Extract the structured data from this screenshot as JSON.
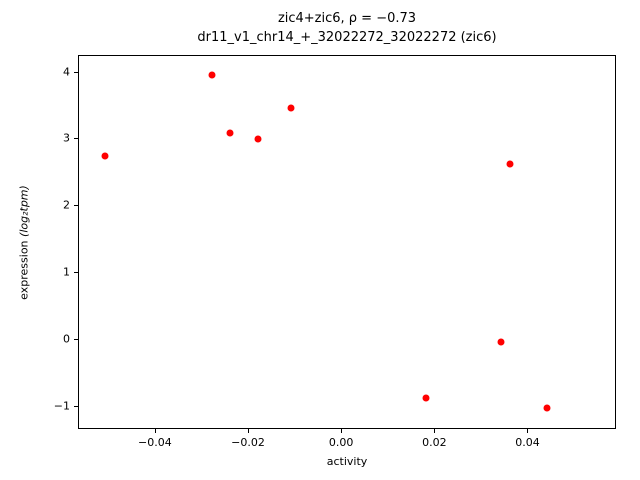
{
  "chart_data": {
    "type": "scatter",
    "title": "zic4+zic6, ρ = −0.73",
    "subtitle": "dr11_v1_chr14_+_32022272_32022272 (zic6)",
    "xlabel": "activity",
    "ylabel_prefix": "expression ",
    "ylabel_math": "(log₂tpm)",
    "marker_color": "#ff0000",
    "grid": false,
    "legend": "none",
    "xlim": [
      -0.0565,
      0.059
    ],
    "ylim": [
      -1.35,
      4.25
    ],
    "xticks": [
      {
        "v": -0.04,
        "label": "−0.04"
      },
      {
        "v": -0.02,
        "label": "−0.02"
      },
      {
        "v": 0.0,
        "label": "0.00"
      },
      {
        "v": 0.02,
        "label": "0.02"
      },
      {
        "v": 0.04,
        "label": "0.04"
      }
    ],
    "yticks": [
      {
        "v": -1,
        "label": "−1"
      },
      {
        "v": 0,
        "label": "0"
      },
      {
        "v": 1,
        "label": "1"
      },
      {
        "v": 2,
        "label": "2"
      },
      {
        "v": 3,
        "label": "3"
      },
      {
        "v": 4,
        "label": "4"
      }
    ],
    "points": [
      {
        "x": -0.051,
        "y": 2.75
      },
      {
        "x": -0.028,
        "y": 3.97
      },
      {
        "x": -0.024,
        "y": 3.09
      },
      {
        "x": -0.018,
        "y": 3.01
      },
      {
        "x": -0.011,
        "y": 3.47
      },
      {
        "x": 0.018,
        "y": -0.87
      },
      {
        "x": 0.034,
        "y": -0.03
      },
      {
        "x": 0.036,
        "y": 2.64
      },
      {
        "x": 0.044,
        "y": -1.02
      }
    ]
  }
}
